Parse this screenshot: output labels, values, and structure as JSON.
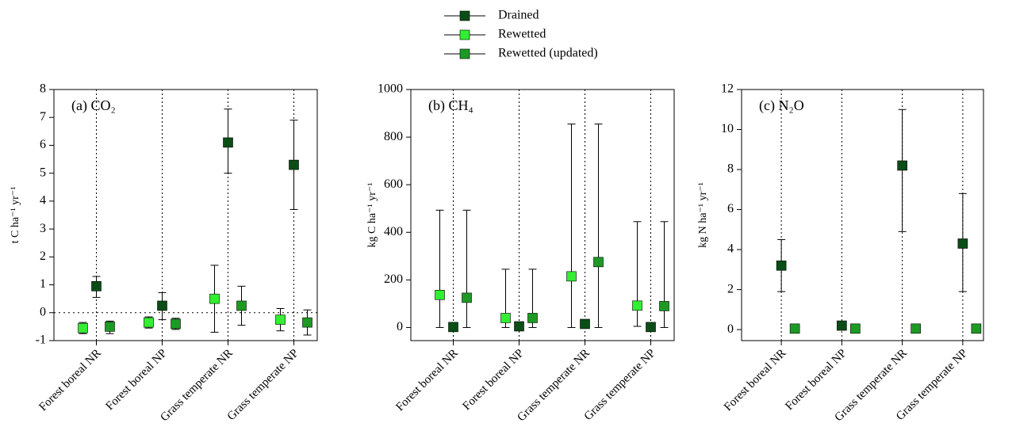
{
  "chart_data": [
    {
      "type": "scatter",
      "title": "(a) CO₂",
      "y_label": "t C ha⁻¹ yr⁻¹",
      "categories": [
        "Forest boreal NR",
        "Forest  boreal NP",
        "Grass temperate NR",
        "Grass temperate NP"
      ],
      "series": [
        {
          "name": "Drained",
          "color": "#0b4d16",
          "values": [
            0.95,
            0.25,
            6.1,
            5.3
          ],
          "error_low": [
            0.55,
            -0.25,
            5.0,
            3.7
          ],
          "error_high": [
            1.3,
            0.72,
            7.3,
            6.9
          ]
        },
        {
          "name": "Rewetted",
          "color": "#33ee33",
          "values": [
            -0.55,
            -0.35,
            0.5,
            -0.25
          ],
          "error_low": [
            -0.75,
            -0.55,
            -0.7,
            -0.65
          ],
          "error_high": [
            -0.35,
            -0.15,
            1.7,
            0.15
          ]
        },
        {
          "name": "Rewetted (updated)",
          "color": "#1d9a24",
          "values": [
            -0.5,
            -0.4,
            0.25,
            -0.35
          ],
          "error_low": [
            -0.75,
            -0.6,
            -0.45,
            -0.8
          ],
          "error_high": [
            -0.3,
            -0.2,
            0.95,
            0.1
          ]
        }
      ],
      "ylim": [
        -1,
        8
      ],
      "yticks": [
        -1,
        0,
        1,
        2,
        3,
        4,
        5,
        6,
        7,
        8
      ],
      "zero_line": true
    },
    {
      "type": "scatter",
      "title": "(b) CH₄",
      "y_label": "kg C ha⁻¹ yr⁻¹",
      "categories": [
        "Forest boreal NR",
        "Forest  boreal NP",
        "Grass temperate NR",
        "Grass temperate NP"
      ],
      "series": [
        {
          "name": "Drained",
          "color": "#0b4d16",
          "values": [
            2,
            5,
            15,
            2
          ],
          "error_low": [
            0,
            0,
            0,
            0
          ],
          "error_high": [
            10,
            12,
            30,
            10
          ]
        },
        {
          "name": "Rewetted",
          "color": "#33ee33",
          "values": [
            137,
            40,
            215,
            92
          ],
          "error_low": [
            0,
            0,
            0,
            5
          ],
          "error_high": [
            493,
            245,
            855,
            445
          ]
        },
        {
          "name": "Rewetted (updated)",
          "color": "#1d9a24",
          "values": [
            125,
            40,
            275,
            90
          ],
          "error_low": [
            0,
            0,
            0,
            0
          ],
          "error_high": [
            493,
            245,
            855,
            445
          ]
        }
      ],
      "ylim": [
        -55,
        1000
      ],
      "yticks": [
        0,
        200,
        400,
        600,
        800,
        1000
      ],
      "zero_line": false
    },
    {
      "type": "scatter",
      "title": "(c) N₂O",
      "y_label": "kg N ha⁻¹ yr⁻¹",
      "categories": [
        "Forest boreal NR",
        "Forest  boreal NP",
        "Grass temperate NR",
        "Grass temperate NP"
      ],
      "series": [
        {
          "name": "Drained",
          "color": "#0b4d16",
          "values": [
            3.2,
            0.2,
            8.2,
            4.3
          ],
          "error_low": [
            1.9,
            0.1,
            4.9,
            1.9
          ],
          "error_high": [
            4.5,
            0.3,
            11,
            6.8
          ]
        },
        {
          "name": "Rewetted (updated)",
          "color": "#1d9a24",
          "values": [
            0.05,
            0.05,
            0.05,
            0.05
          ],
          "error_low": [
            0,
            0,
            0,
            0
          ],
          "error_high": [
            0.1,
            0.1,
            0.1,
            0.1
          ]
        }
      ],
      "ylim": [
        -0.55,
        12
      ],
      "yticks": [
        0,
        2,
        4,
        6,
        8,
        10,
        12
      ],
      "zero_line": false
    }
  ]
}
